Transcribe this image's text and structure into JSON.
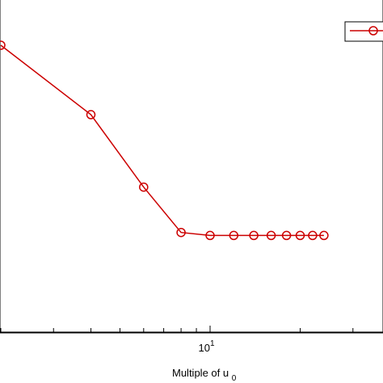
{
  "chart_data": {
    "type": "line",
    "xscale": "log",
    "x": [
      2,
      4,
      6,
      8,
      10,
      12,
      14,
      16,
      18,
      20,
      22,
      24
    ],
    "series": [
      {
        "color": "#cc0000",
        "marker": "circle",
        "values": [
          0.95,
          0.72,
          0.48,
          0.33,
          0.32,
          0.32,
          0.32,
          0.32,
          0.32,
          0.32,
          0.32,
          0.32
        ]
      }
    ],
    "xlabel_text": "Multiple of u",
    "xlabel_subscript": "0",
    "xtick_base": "10",
    "xtick_exponent": "1",
    "xlim": [
      1.75,
      45
    ],
    "ylim": [
      0,
      1.05
    ],
    "grid": false,
    "legend_position": "top-right"
  }
}
